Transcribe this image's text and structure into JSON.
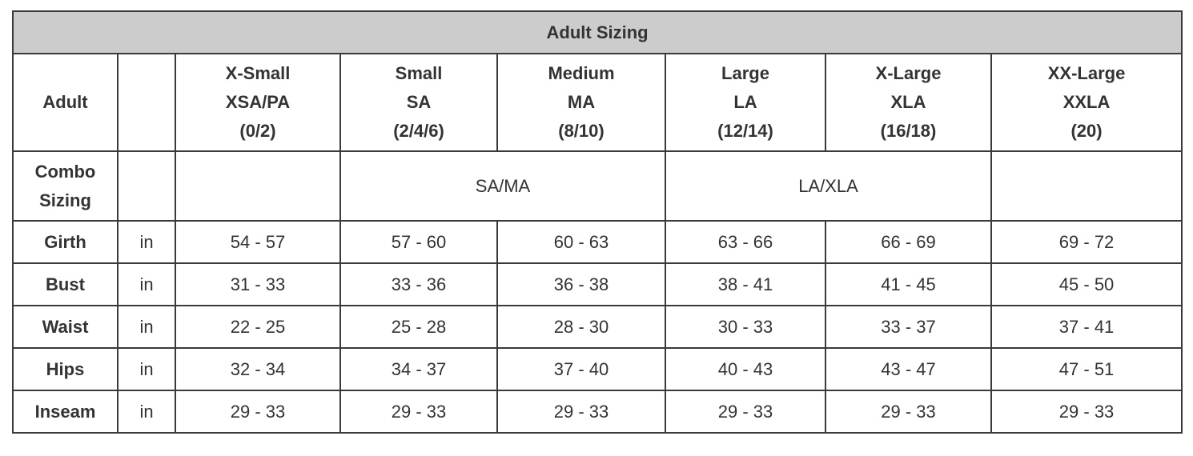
{
  "title": "Adult Sizing",
  "header": {
    "label": "Adult",
    "sizes": [
      [
        "X-Small",
        "XSA/PA",
        "(0/2)"
      ],
      [
        "Small",
        "SA",
        "(2/4/6)"
      ],
      [
        "Medium",
        "MA",
        "(8/10)"
      ],
      [
        "Large",
        "LA",
        "(12/14)"
      ],
      [
        "X-Large",
        "XLA",
        "(16/18)"
      ],
      [
        "XX-Large",
        "XXLA",
        "(20)"
      ]
    ]
  },
  "combo": {
    "label": "Combo Sizing",
    "groups": [
      "SA/MA",
      "LA/XLA"
    ]
  },
  "rows": [
    {
      "label": "Girth",
      "unit": "in",
      "values": [
        "54 - 57",
        "57 - 60",
        "60 - 63",
        "63 - 66",
        "66 - 69",
        "69 - 72"
      ]
    },
    {
      "label": "Bust",
      "unit": "in",
      "values": [
        "31 - 33",
        "33 - 36",
        "36 - 38",
        "38 - 41",
        "41 - 45",
        "45 - 50"
      ]
    },
    {
      "label": "Waist",
      "unit": "in",
      "values": [
        "22 - 25",
        "25 - 28",
        "28 - 30",
        "30 - 33",
        "33 - 37",
        "37 - 41"
      ]
    },
    {
      "label": "Hips",
      "unit": "in",
      "values": [
        "32 - 34",
        "34 - 37",
        "37 - 40",
        "40 - 43",
        "43 - 47",
        "47 - 51"
      ]
    },
    {
      "label": "Inseam",
      "unit": "in",
      "values": [
        "29 - 33",
        "29 - 33",
        "29 - 33",
        "29 - 33",
        "29 - 33",
        "29 - 33"
      ]
    }
  ]
}
